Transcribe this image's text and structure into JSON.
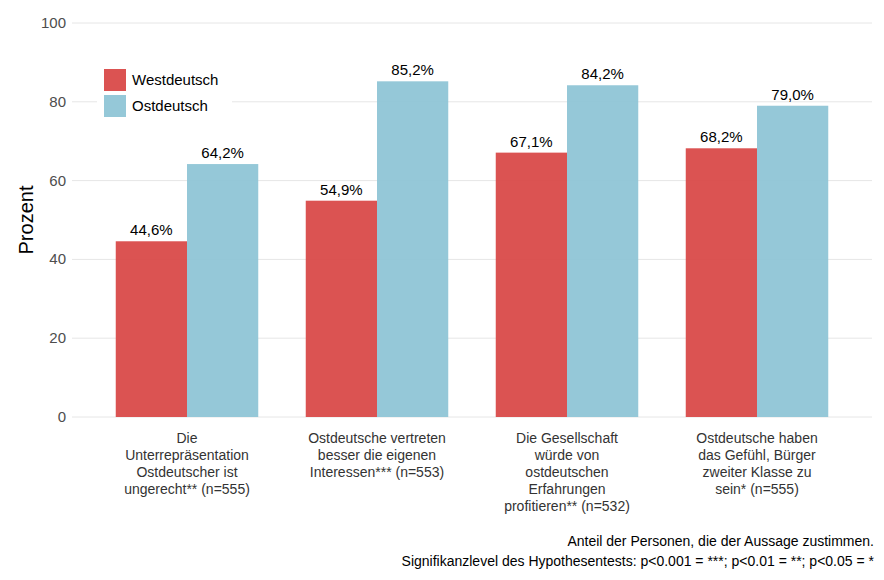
{
  "chart_data": {
    "type": "bar",
    "categories": [
      "Die Unterrepräsentation Ostdeutscher ist ungerecht** (n=555)",
      "Ostdeutsche vertreten besser die eigenen Interessen*** (n=553)",
      "Die Gesellschaft würde von ostdeutschen Erfahrungen profitieren** (n=532)",
      "Ostdeutsche haben das Gefühl, Bürger zweiter Klasse zu sein* (n=555)"
    ],
    "series": [
      {
        "name": "Westdeutsch",
        "color": "#d94a49",
        "values": [
          44.6,
          54.9,
          67.1,
          68.2
        ],
        "value_labels": [
          "44,6%",
          "54,9%",
          "67,1%",
          "68,2%"
        ]
      },
      {
        "name": "Ostdeutsch",
        "color": "#8fc5d6",
        "values": [
          64.2,
          85.2,
          84.2,
          79.0
        ],
        "value_labels": [
          "64,2%",
          "85,2%",
          "84,2%",
          "79,0%"
        ]
      }
    ],
    "ylabel": "Prozent",
    "annotations": [
      "Anteil der Personen, die der Aussage zustimmen.",
      "Signifikanzlevel des Hypothesentests: p<0.001 = ***; p<0.01 = **; p<0.05 = *"
    ],
    "ylim": [
      0,
      100
    ],
    "yticks": [
      0,
      20,
      40,
      60,
      80,
      100
    ],
    "grid": true,
    "legend": "top-left",
    "data_labels": true
  }
}
